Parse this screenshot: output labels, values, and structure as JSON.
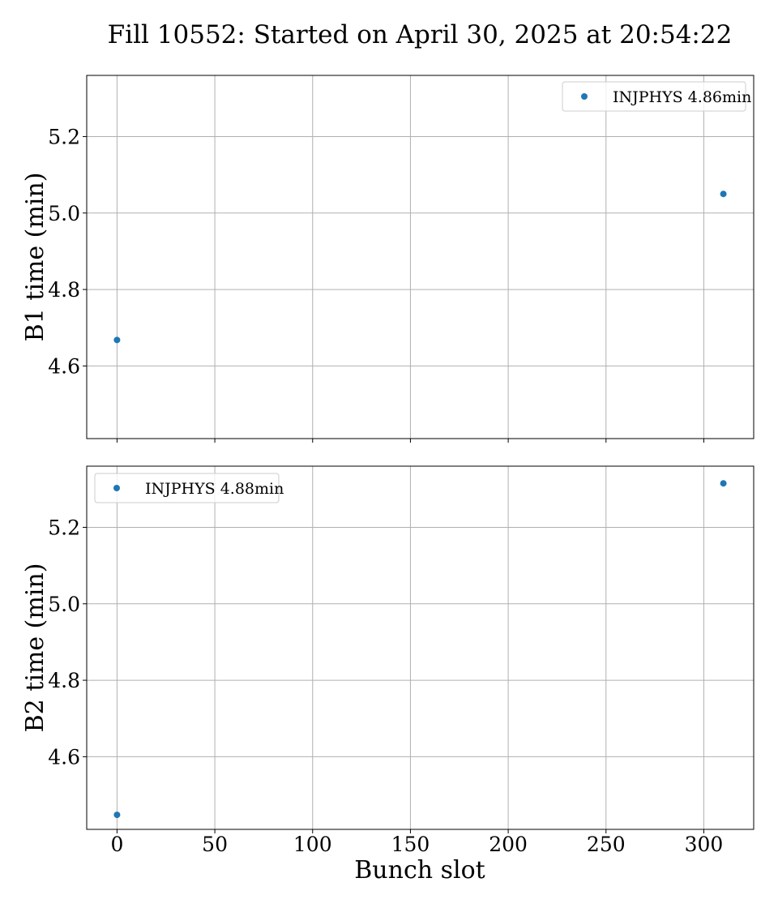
{
  "title": "Fill 10552: Started on April 30, 2025 at 20:54:22",
  "xlabel": "Bunch slot",
  "colors": {
    "marker": "#1f77b4",
    "grid": "#b0b0b0",
    "frame": "#000000",
    "legend_border": "#cccccc"
  },
  "chart_data": [
    {
      "type": "scatter",
      "ylabel": "B1 time (min)",
      "xlim": [
        -15.5,
        325.5
      ],
      "ylim": [
        4.41,
        5.36
      ],
      "xticks": [
        0,
        50,
        100,
        150,
        200,
        250,
        300
      ],
      "yticks": [
        4.6,
        4.8,
        5.0,
        5.2
      ],
      "ytick_labels": [
        "4.6",
        "4.8",
        "5.0",
        "5.2"
      ],
      "grid": true,
      "legend_position": "top-right",
      "series": [
        {
          "name": "INJPHYS 4.86min",
          "x": [
            0,
            310
          ],
          "y": [
            4.668,
            5.05
          ]
        }
      ]
    },
    {
      "type": "scatter",
      "ylabel": "B2 time (min)",
      "xlabel": "Bunch slot",
      "xlim": [
        -15.5,
        325.5
      ],
      "ylim": [
        4.41,
        5.36
      ],
      "xticks": [
        0,
        50,
        100,
        150,
        200,
        250,
        300
      ],
      "xtick_labels": [
        "0",
        "50",
        "100",
        "150",
        "200",
        "250",
        "300"
      ],
      "yticks": [
        4.6,
        4.8,
        5.0,
        5.2
      ],
      "ytick_labels": [
        "4.6",
        "4.8",
        "5.0",
        "5.2"
      ],
      "grid": true,
      "legend_position": "top-left",
      "series": [
        {
          "name": "INJPHYS 4.88min",
          "x": [
            0,
            310
          ],
          "y": [
            4.448,
            5.315
          ]
        }
      ]
    }
  ]
}
